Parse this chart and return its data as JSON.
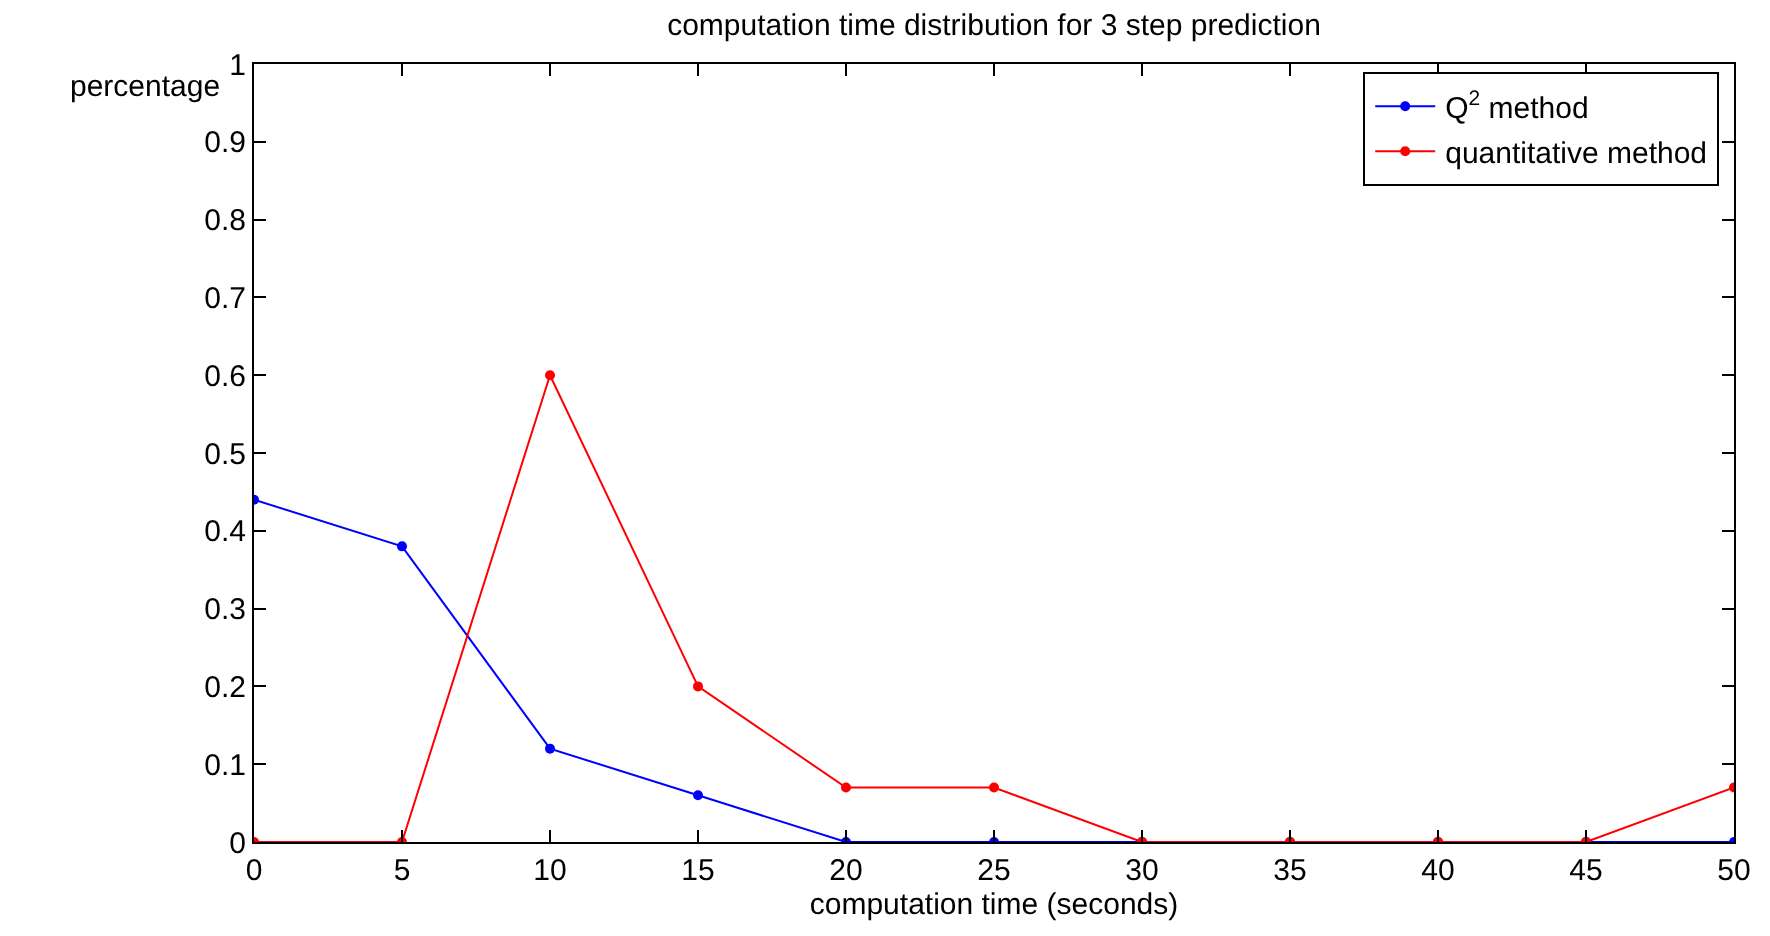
{
  "chart_data": {
    "type": "line",
    "title": "computation time distribution for 3 step prediction",
    "xlabel": "computation time (seconds)",
    "ylabel": "percentage",
    "x": [
      0,
      5,
      10,
      15,
      20,
      25,
      30,
      35,
      40,
      45,
      50
    ],
    "series": [
      {
        "name": "Q$^{2}$ method",
        "color": "#0000ff",
        "values": [
          0.44,
          0.38,
          0.12,
          0.06,
          0,
          0,
          0,
          0,
          0,
          0,
          0
        ]
      },
      {
        "name": "quantitative method",
        "color": "#ff0000",
        "values": [
          0,
          0,
          0.6,
          0.2,
          0.07,
          0.07,
          0,
          0,
          0,
          0,
          0.07
        ]
      }
    ],
    "xlim": [
      0,
      50
    ],
    "xticks": [
      0,
      5,
      10,
      15,
      20,
      25,
      30,
      35,
      40,
      45,
      50
    ],
    "ylim": [
      0,
      1
    ],
    "yticks": [
      0,
      0.1,
      0.2,
      0.3,
      0.4,
      0.5,
      0.6,
      0.7,
      0.8,
      0.9,
      1
    ],
    "legend": "top right",
    "marker": "circle",
    "line_style": "solid"
  }
}
